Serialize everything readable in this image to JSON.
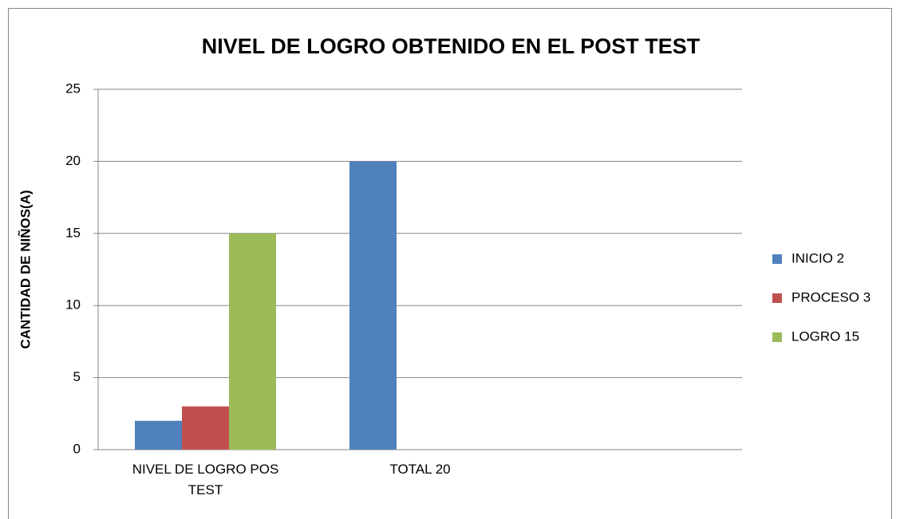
{
  "chart_data": {
    "type": "bar",
    "title": "NIVEL DE LOGRO OBTENIDO EN EL POST  TEST",
    "y_label": "CANTIDAD  DE NIÑOS(A)",
    "categories": [
      "NIVEL DE LOGRO POS TEST",
      "TOTAL 20",
      null
    ],
    "series": [
      {
        "name": "INICIO 2",
        "color": "#4f81bd",
        "values": [
          2,
          20,
          null
        ]
      },
      {
        "name": "PROCESO 3",
        "color": "#c0504d",
        "values": [
          3,
          null,
          null
        ]
      },
      {
        "name": "LOGRO 15",
        "color": "#9bbb59",
        "values": [
          15,
          null,
          null
        ]
      }
    ],
    "ylim": [
      0,
      25
    ],
    "yticks": [
      0,
      5,
      10,
      15,
      20,
      25
    ],
    "grid": true,
    "legend": "right"
  }
}
